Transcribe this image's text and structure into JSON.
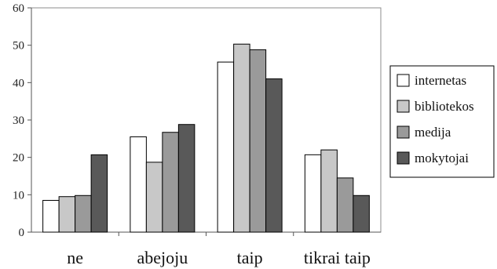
{
  "chart_data": {
    "type": "bar",
    "title": "",
    "xlabel": "",
    "ylabel": "",
    "ylim": [
      0,
      60
    ],
    "yticks": [
      0,
      10,
      20,
      30,
      40,
      50,
      60
    ],
    "grid": false,
    "legend_position": "right",
    "categories": [
      "ne",
      "abejoju",
      "taip",
      "tikrai taip"
    ],
    "series": [
      {
        "name": "internetas",
        "color": "#ffffff",
        "values": [
          8.5,
          25.5,
          45.5,
          20.7
        ]
      },
      {
        "name": "bibliotekos",
        "color": "#c8c8c8",
        "values": [
          9.5,
          18.7,
          50.3,
          22.0
        ]
      },
      {
        "name": "medija",
        "color": "#9a9a9a",
        "values": [
          9.8,
          26.7,
          48.8,
          14.5
        ]
      },
      {
        "name": "mokytojai",
        "color": "#595959",
        "values": [
          20.7,
          28.8,
          41.0,
          9.8
        ]
      }
    ]
  }
}
